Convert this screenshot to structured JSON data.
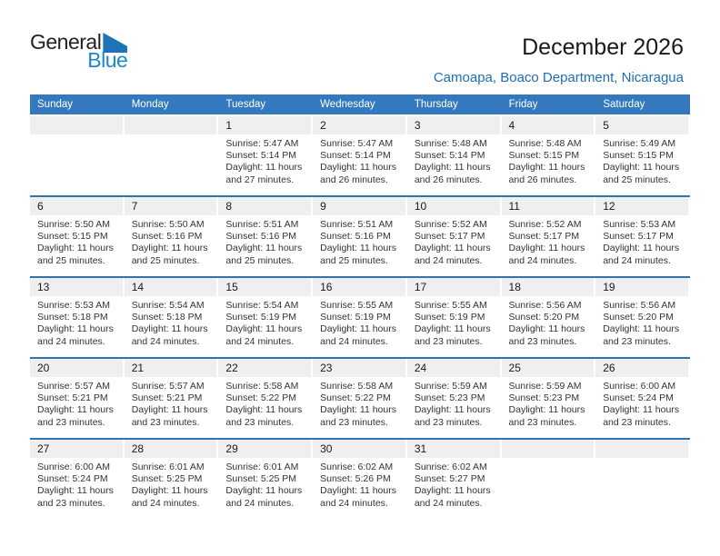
{
  "logo": {
    "text_top": "General",
    "text_bottom": "Blue"
  },
  "header": {
    "title": "December 2026",
    "subtitle": "Camoapa, Boaco Department, Nicaragua"
  },
  "weekdays": [
    "Sunday",
    "Monday",
    "Tuesday",
    "Wednesday",
    "Thursday",
    "Friday",
    "Saturday"
  ],
  "weeks": [
    [
      null,
      null,
      {
        "day": "1",
        "lines": [
          "Sunrise: 5:47 AM",
          "Sunset: 5:14 PM",
          "Daylight: 11 hours",
          "and 27 minutes."
        ]
      },
      {
        "day": "2",
        "lines": [
          "Sunrise: 5:47 AM",
          "Sunset: 5:14 PM",
          "Daylight: 11 hours",
          "and 26 minutes."
        ]
      },
      {
        "day": "3",
        "lines": [
          "Sunrise: 5:48 AM",
          "Sunset: 5:14 PM",
          "Daylight: 11 hours",
          "and 26 minutes."
        ]
      },
      {
        "day": "4",
        "lines": [
          "Sunrise: 5:48 AM",
          "Sunset: 5:15 PM",
          "Daylight: 11 hours",
          "and 26 minutes."
        ]
      },
      {
        "day": "5",
        "lines": [
          "Sunrise: 5:49 AM",
          "Sunset: 5:15 PM",
          "Daylight: 11 hours",
          "and 25 minutes."
        ]
      }
    ],
    [
      {
        "day": "6",
        "lines": [
          "Sunrise: 5:50 AM",
          "Sunset: 5:15 PM",
          "Daylight: 11 hours",
          "and 25 minutes."
        ]
      },
      {
        "day": "7",
        "lines": [
          "Sunrise: 5:50 AM",
          "Sunset: 5:16 PM",
          "Daylight: 11 hours",
          "and 25 minutes."
        ]
      },
      {
        "day": "8",
        "lines": [
          "Sunrise: 5:51 AM",
          "Sunset: 5:16 PM",
          "Daylight: 11 hours",
          "and 25 minutes."
        ]
      },
      {
        "day": "9",
        "lines": [
          "Sunrise: 5:51 AM",
          "Sunset: 5:16 PM",
          "Daylight: 11 hours",
          "and 25 minutes."
        ]
      },
      {
        "day": "10",
        "lines": [
          "Sunrise: 5:52 AM",
          "Sunset: 5:17 PM",
          "Daylight: 11 hours",
          "and 24 minutes."
        ]
      },
      {
        "day": "11",
        "lines": [
          "Sunrise: 5:52 AM",
          "Sunset: 5:17 PM",
          "Daylight: 11 hours",
          "and 24 minutes."
        ]
      },
      {
        "day": "12",
        "lines": [
          "Sunrise: 5:53 AM",
          "Sunset: 5:17 PM",
          "Daylight: 11 hours",
          "and 24 minutes."
        ]
      }
    ],
    [
      {
        "day": "13",
        "lines": [
          "Sunrise: 5:53 AM",
          "Sunset: 5:18 PM",
          "Daylight: 11 hours",
          "and 24 minutes."
        ]
      },
      {
        "day": "14",
        "lines": [
          "Sunrise: 5:54 AM",
          "Sunset: 5:18 PM",
          "Daylight: 11 hours",
          "and 24 minutes."
        ]
      },
      {
        "day": "15",
        "lines": [
          "Sunrise: 5:54 AM",
          "Sunset: 5:19 PM",
          "Daylight: 11 hours",
          "and 24 minutes."
        ]
      },
      {
        "day": "16",
        "lines": [
          "Sunrise: 5:55 AM",
          "Sunset: 5:19 PM",
          "Daylight: 11 hours",
          "and 24 minutes."
        ]
      },
      {
        "day": "17",
        "lines": [
          "Sunrise: 5:55 AM",
          "Sunset: 5:19 PM",
          "Daylight: 11 hours",
          "and 23 minutes."
        ]
      },
      {
        "day": "18",
        "lines": [
          "Sunrise: 5:56 AM",
          "Sunset: 5:20 PM",
          "Daylight: 11 hours",
          "and 23 minutes."
        ]
      },
      {
        "day": "19",
        "lines": [
          "Sunrise: 5:56 AM",
          "Sunset: 5:20 PM",
          "Daylight: 11 hours",
          "and 23 minutes."
        ]
      }
    ],
    [
      {
        "day": "20",
        "lines": [
          "Sunrise: 5:57 AM",
          "Sunset: 5:21 PM",
          "Daylight: 11 hours",
          "and 23 minutes."
        ]
      },
      {
        "day": "21",
        "lines": [
          "Sunrise: 5:57 AM",
          "Sunset: 5:21 PM",
          "Daylight: 11 hours",
          "and 23 minutes."
        ]
      },
      {
        "day": "22",
        "lines": [
          "Sunrise: 5:58 AM",
          "Sunset: 5:22 PM",
          "Daylight: 11 hours",
          "and 23 minutes."
        ]
      },
      {
        "day": "23",
        "lines": [
          "Sunrise: 5:58 AM",
          "Sunset: 5:22 PM",
          "Daylight: 11 hours",
          "and 23 minutes."
        ]
      },
      {
        "day": "24",
        "lines": [
          "Sunrise: 5:59 AM",
          "Sunset: 5:23 PM",
          "Daylight: 11 hours",
          "and 23 minutes."
        ]
      },
      {
        "day": "25",
        "lines": [
          "Sunrise: 5:59 AM",
          "Sunset: 5:23 PM",
          "Daylight: 11 hours",
          "and 23 minutes."
        ]
      },
      {
        "day": "26",
        "lines": [
          "Sunrise: 6:00 AM",
          "Sunset: 5:24 PM",
          "Daylight: 11 hours",
          "and 23 minutes."
        ]
      }
    ],
    [
      {
        "day": "27",
        "lines": [
          "Sunrise: 6:00 AM",
          "Sunset: 5:24 PM",
          "Daylight: 11 hours",
          "and 23 minutes."
        ]
      },
      {
        "day": "28",
        "lines": [
          "Sunrise: 6:01 AM",
          "Sunset: 5:25 PM",
          "Daylight: 11 hours",
          "and 24 minutes."
        ]
      },
      {
        "day": "29",
        "lines": [
          "Sunrise: 6:01 AM",
          "Sunset: 5:25 PM",
          "Daylight: 11 hours",
          "and 24 minutes."
        ]
      },
      {
        "day": "30",
        "lines": [
          "Sunrise: 6:02 AM",
          "Sunset: 5:26 PM",
          "Daylight: 11 hours",
          "and 24 minutes."
        ]
      },
      {
        "day": "31",
        "lines": [
          "Sunrise: 6:02 AM",
          "Sunset: 5:27 PM",
          "Daylight: 11 hours",
          "and 24 minutes."
        ]
      },
      null,
      null
    ]
  ],
  "colors": {
    "header_bg": "#3478BD",
    "separator": "#2E74B5",
    "strip_bg": "#EFEFEF",
    "subtitle_color": "#1F6DB5",
    "logo_blue": "#1789CE",
    "logo_triangle": "#1E74B8"
  }
}
